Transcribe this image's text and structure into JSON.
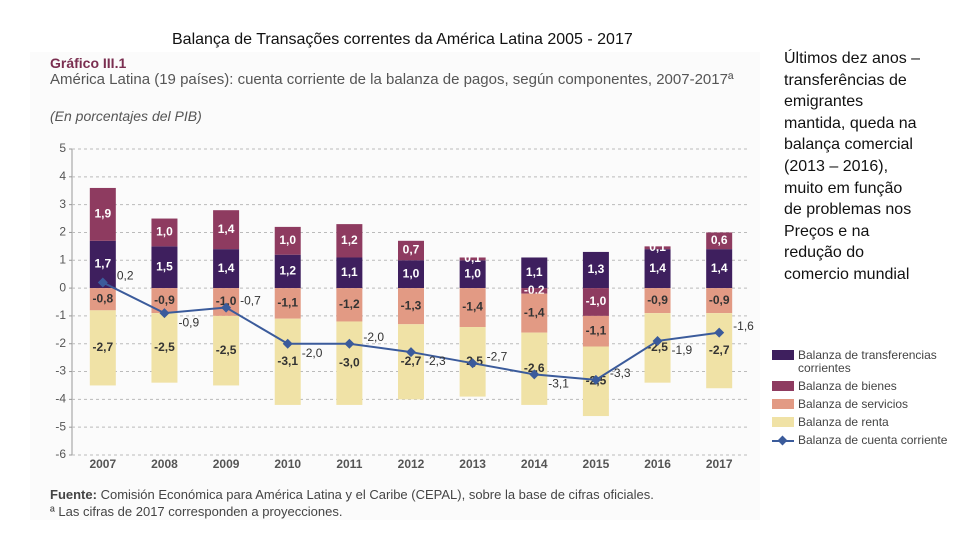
{
  "slide": {
    "title": "Balança de Transações correntes da América Latina 2005 - 2017",
    "notes": "Últimos dez anos – transferências de emigrantes mantida, queda na balança comercial (2013 – 2016), muito em função de problemas nos Preços e na redução do comercio mundial"
  },
  "chart_data": {
    "type": "bar",
    "stacked": true,
    "label": "Gráfico III.1",
    "title": "América Latina (19 países): cuenta corriente de la balanza de pagos, según componentes, 2007-2017ª",
    "subtitle": "(En porcentajes del PIB)",
    "source_label": "Fuente:",
    "source": "Comisión Económica para América Latina y el Caribe (CEPAL), sobre la base de cifras oficiales.",
    "footnote": "ª Las cifras de 2017 corresponden a proyecciones.",
    "categories": [
      "2007",
      "2008",
      "2009",
      "2010",
      "2011",
      "2012",
      "2013",
      "2014",
      "2015",
      "2016",
      "2017"
    ],
    "ylim": [
      -6,
      5
    ],
    "yticks": [
      -6,
      -5,
      -4,
      -3,
      -2,
      -1,
      0,
      1,
      2,
      3,
      4,
      5
    ],
    "grid": true,
    "series": [
      {
        "name": "Balanza de transferencias corrientes",
        "color": "#3e1f5e",
        "text_color": "#ffffff",
        "values": [
          1.7,
          1.5,
          1.4,
          1.2,
          1.1,
          1.0,
          1.0,
          1.1,
          1.3,
          1.4,
          1.4
        ],
        "value_labels": [
          "1,7",
          "1,5",
          "1,4",
          "1,2",
          "1,1",
          "1,0",
          "1,0",
          "1,1",
          "1,3",
          "1,4",
          "1,4"
        ]
      },
      {
        "name": "Balanza de bienes",
        "color": "#8e3b60",
        "text_color": "#ffffff",
        "values": [
          1.9,
          1.0,
          1.4,
          1.0,
          1.2,
          0.7,
          0.1,
          -0.2,
          -1.0,
          0.1,
          0.6
        ],
        "value_labels": [
          "1,9",
          "1,0",
          "1,4",
          "1,0",
          "1,2",
          "0,7",
          "0,1",
          "-0,2",
          "-1,0",
          "0,1",
          "0,6"
        ]
      },
      {
        "name": "Balanza de servicios",
        "color": "#e29a84",
        "text_color": "#333333",
        "values": [
          -0.8,
          -0.9,
          -1.0,
          -1.1,
          -1.2,
          -1.3,
          -1.4,
          -1.4,
          -1.1,
          -0.9,
          -0.9
        ],
        "value_labels": [
          "-0,8",
          "-0,9",
          "-1,0",
          "-1,1",
          "-1,2",
          "-1,3",
          "-1,4",
          "-1,4",
          "-1,1",
          "-0,9",
          "-0,9"
        ]
      },
      {
        "name": "Balanza de renta",
        "color": "#f0e2a6",
        "text_color": "#333333",
        "values": [
          -2.7,
          -2.5,
          -2.5,
          -3.1,
          -3.0,
          -2.7,
          -2.5,
          -2.6,
          -2.5,
          -2.5,
          -2.7
        ],
        "value_labels": [
          "-2,7",
          "-2,5",
          "-2,5",
          "-3,1",
          "-3,0",
          "-2,7",
          "-2,5",
          "-2,6",
          "-2,5",
          "-2,5",
          "-2,7"
        ]
      },
      {
        "name": "Balanza de cuenta corriente",
        "type": "line",
        "color": "#3b5b9b",
        "text_color": "#333333",
        "values": [
          0.2,
          -0.9,
          -0.7,
          -2.0,
          -2.0,
          -2.3,
          -2.7,
          -3.1,
          -3.3,
          -1.9,
          -1.6
        ],
        "value_labels": [
          "0,2",
          "-0,9",
          "-0,7",
          "-2,0",
          "-2,0",
          "-2,3",
          "-2,7",
          "-3,1",
          "-3,3",
          "-1,9",
          "-1,6"
        ]
      }
    ]
  }
}
